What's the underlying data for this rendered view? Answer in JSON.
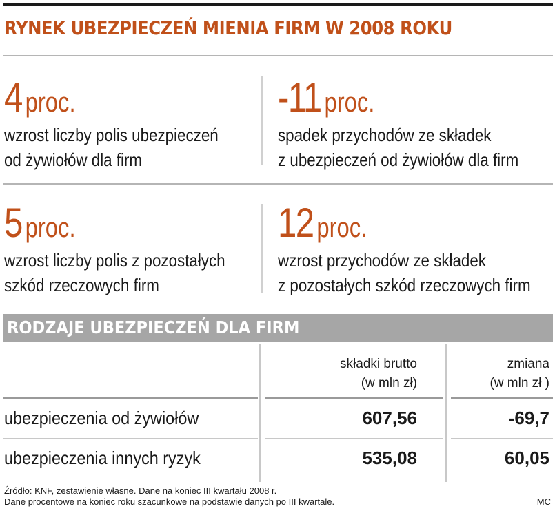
{
  "title": "RYNEK UBEZPIECZEŃ MIENIA FIRM W 2008 ROKU",
  "stats": [
    {
      "number": "4",
      "unit": "proc.",
      "lines": [
        "wzrost liczby polis ubezpieczeń",
        "od żywiołów dla firm"
      ]
    },
    {
      "number": "-11",
      "unit": "proc.",
      "lines": [
        "spadek przychodów ze składek",
        "z ubezpieczeń od żywiołów dla firm"
      ]
    },
    {
      "number": "5",
      "unit": "proc.",
      "lines": [
        "wzrost liczby polis z pozostałych",
        "szkód rzeczowych firm"
      ]
    },
    {
      "number": "12",
      "unit": "proc.",
      "lines": [
        "wzrost przychodów ze składek",
        "z pozostałych szkód rzeczowych firm"
      ]
    }
  ],
  "section_title": "RODZAJE UBEZPIECZEŃ DLA FIRM",
  "table": {
    "columns": [
      {
        "line1": "składki brutto",
        "line2": "(w mln zł)"
      },
      {
        "line1": "zmiana",
        "line2": "(w mln zł )"
      }
    ],
    "rows": [
      {
        "label": "ubezpieczenia od żywiołów",
        "values": [
          "607,56",
          "-69,7"
        ]
      },
      {
        "label": "ubezpieczenia innych ryzyk",
        "values": [
          "535,08",
          "60,05"
        ]
      }
    ]
  },
  "footnotes": [
    "Źródło: KNF, zestawienie własne. Dane na koniec III kwartału 2008 r.",
    "Dane procentowe na koniec roku szacunkowe na podstawie danych po III kwartale."
  ],
  "author": "MC",
  "colors": {
    "accent": "#c0501a",
    "section_bar": "#a6a6a6"
  }
}
